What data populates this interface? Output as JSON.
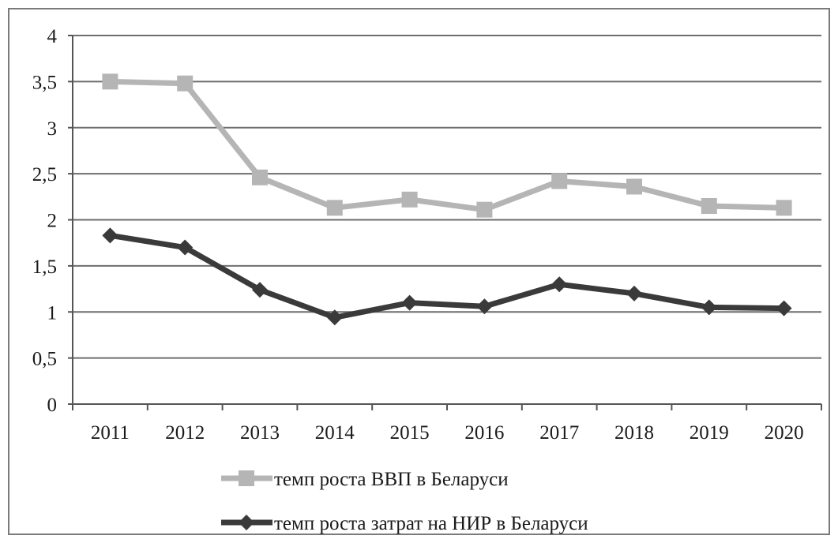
{
  "chart_data": {
    "type": "line",
    "title": "",
    "xlabel": "",
    "ylabel": "",
    "categories": [
      "2011",
      "2012",
      "2013",
      "2014",
      "2015",
      "2016",
      "2017",
      "2018",
      "2019",
      "2020"
    ],
    "y_ticks": [
      "0",
      "0,5",
      "1",
      "1,5",
      "2",
      "2,5",
      "3",
      "3,5",
      "4"
    ],
    "ylim": [
      0,
      4
    ],
    "grid": "horizontal",
    "legend_position": "bottom",
    "series": [
      {
        "name": "темп роста ВВП в Беларуси",
        "marker": "square",
        "color": "#b5b5b5",
        "values": [
          3.5,
          3.48,
          2.46,
          2.13,
          2.22,
          2.11,
          2.42,
          2.36,
          2.15,
          2.13
        ]
      },
      {
        "name": "темп роста затрат на НИР в Беларуси",
        "marker": "diamond",
        "color": "#3a3a3a",
        "values": [
          1.83,
          1.7,
          1.24,
          0.94,
          1.1,
          1.06,
          1.3,
          1.2,
          1.05,
          1.04
        ]
      }
    ]
  }
}
